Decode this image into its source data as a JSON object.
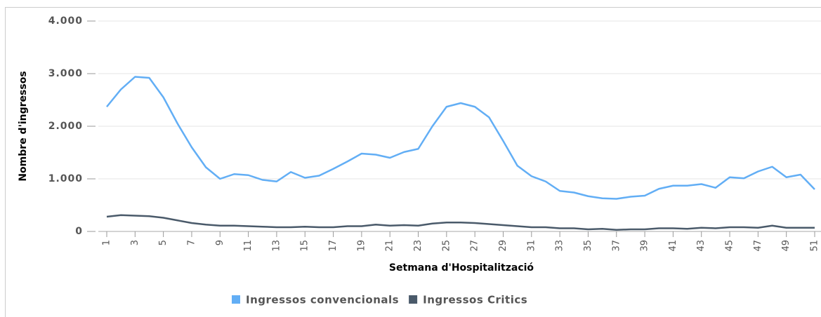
{
  "chart_data": {
    "type": "line",
    "x_label": "Setmana d'Hospitalització",
    "y_label": "Nombre d'ingressos",
    "x": [
      1,
      2,
      3,
      4,
      5,
      6,
      7,
      8,
      9,
      10,
      11,
      12,
      13,
      14,
      15,
      16,
      17,
      18,
      19,
      20,
      21,
      22,
      23,
      24,
      25,
      26,
      27,
      28,
      29,
      30,
      31,
      32,
      33,
      34,
      35,
      36,
      37,
      38,
      39,
      40,
      41,
      42,
      43,
      44,
      45,
      46,
      47,
      48,
      49,
      50,
      51
    ],
    "series": [
      {
        "name": "Ingressos convencionals",
        "color": "#62aef5",
        "values": [
          2370,
          2700,
          2940,
          2920,
          2550,
          2050,
          1600,
          1220,
          1000,
          1090,
          1070,
          980,
          950,
          1130,
          1020,
          1060,
          1190,
          1330,
          1480,
          1460,
          1400,
          1510,
          1570,
          2000,
          2370,
          2440,
          2370,
          2170,
          1720,
          1250,
          1050,
          950,
          770,
          740,
          670,
          630,
          620,
          660,
          680,
          810,
          870,
          870,
          900,
          830,
          1030,
          1010,
          1140,
          1230,
          1030,
          1080,
          800
        ]
      },
      {
        "name": "Ingressos Critics",
        "color": "#4a5a6a",
        "values": [
          280,
          310,
          300,
          290,
          260,
          210,
          160,
          130,
          110,
          110,
          100,
          90,
          80,
          80,
          90,
          80,
          80,
          100,
          100,
          130,
          110,
          120,
          110,
          150,
          170,
          170,
          160,
          140,
          120,
          100,
          80,
          80,
          60,
          60,
          40,
          50,
          30,
          40,
          40,
          60,
          60,
          50,
          70,
          60,
          80,
          80,
          70,
          110,
          70,
          70,
          70
        ]
      }
    ],
    "xlim": [
      1,
      51
    ],
    "xticks": [
      1,
      3,
      5,
      7,
      9,
      11,
      13,
      15,
      17,
      19,
      21,
      23,
      25,
      27,
      29,
      31,
      33,
      35,
      37,
      39,
      41,
      43,
      45,
      47,
      49,
      51
    ],
    "ylim": [
      0,
      4000
    ],
    "yticks": [
      0,
      {
        "value": 1000,
        "label": "1.000"
      },
      {
        "value": 2000,
        "label": "2.000"
      },
      {
        "value": 3000,
        "label": "3.000"
      },
      {
        "value": 4000,
        "label": "4.000"
      }
    ],
    "grid": true,
    "legend": "bottom"
  }
}
